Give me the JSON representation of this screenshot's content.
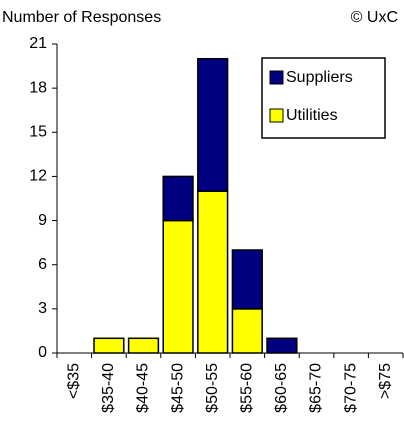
{
  "chart_data": {
    "type": "bar",
    "stacked": true,
    "subtitle": "Number of Responses",
    "annotation": "© UxC",
    "categories": [
      "<$35",
      "$35-40",
      "$40-45",
      "$45-50",
      "$50-55",
      "$55-60",
      "$60-65",
      "$65-70",
      "$70-75",
      ">$75"
    ],
    "series": [
      {
        "name": "Utilities",
        "color": "#ffff00",
        "values": [
          0,
          1,
          1,
          9,
          11,
          3,
          0,
          0,
          0,
          0
        ]
      },
      {
        "name": "Suppliers",
        "color": "#000080",
        "values": [
          0,
          0,
          0,
          3,
          9,
          4,
          1,
          0,
          0,
          0
        ]
      }
    ],
    "ylim": [
      0,
      21
    ],
    "yticks": [
      0,
      3,
      6,
      9,
      12,
      15,
      18,
      21
    ],
    "legend": "upper right"
  }
}
